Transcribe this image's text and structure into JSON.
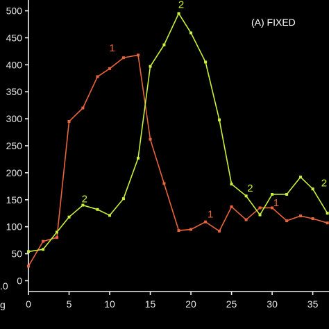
{
  "chart_data": {
    "type": "line",
    "panel_label": "(A)  FIXED",
    "left_fragment_labels": [
      ".0",
      "g"
    ],
    "xlim": [
      0,
      37
    ],
    "ylim": [
      -20,
      520
    ],
    "x_ticks": [
      0,
      5,
      10,
      15,
      20,
      25,
      30,
      35
    ],
    "y_ticks": [
      0,
      50,
      100,
      150,
      200,
      250,
      300,
      350,
      400,
      450,
      500
    ],
    "grid": false,
    "legend": "none",
    "colors": {
      "background": "#000000",
      "axes": "#f0f0f0"
    },
    "series": [
      {
        "label": "1",
        "color": "#e8643c",
        "x": [
          0,
          1.8,
          3.5,
          5,
          6.7,
          8.5,
          10,
          11.7,
          13.5,
          15,
          16.7,
          18.5,
          20,
          21.8,
          23.5,
          25,
          26.8,
          28.5,
          30,
          31.8,
          33.5,
          35,
          36.8
        ],
        "y": [
          27,
          73,
          80,
          295,
          320,
          378,
          393,
          413,
          418,
          262,
          180,
          93,
          95,
          109,
          92,
          137,
          113,
          135,
          135,
          111,
          120,
          115,
          107
        ],
        "point_labels": [
          {
            "text": "1",
            "x": 10.3,
            "y": 425
          },
          {
            "text": "1",
            "x": 22.4,
            "y": 117
          },
          {
            "text": "1",
            "x": 30.5,
            "y": 138
          }
        ]
      },
      {
        "label": "2",
        "color": "#c8f03c",
        "x": [
          0,
          1.8,
          3.5,
          5,
          6.7,
          8.5,
          10,
          11.7,
          13.5,
          15,
          16.7,
          18.5,
          20,
          21.8,
          23.5,
          25,
          26.8,
          28.5,
          30,
          31.8,
          33.5,
          35,
          36.8
        ],
        "y": [
          54,
          58,
          90,
          118,
          140,
          132,
          121,
          152,
          227,
          397,
          437,
          495,
          459,
          405,
          298,
          179,
          157,
          122,
          160,
          160,
          192,
          170,
          125
        ],
        "point_labels": [
          {
            "text": "2",
            "x": 18.8,
            "y": 505
          },
          {
            "text": "2",
            "x": 6.9,
            "y": 145
          },
          {
            "text": "2",
            "x": 27.3,
            "y": 165
          },
          {
            "text": "2",
            "x": 36.4,
            "y": 175
          }
        ]
      }
    ]
  }
}
